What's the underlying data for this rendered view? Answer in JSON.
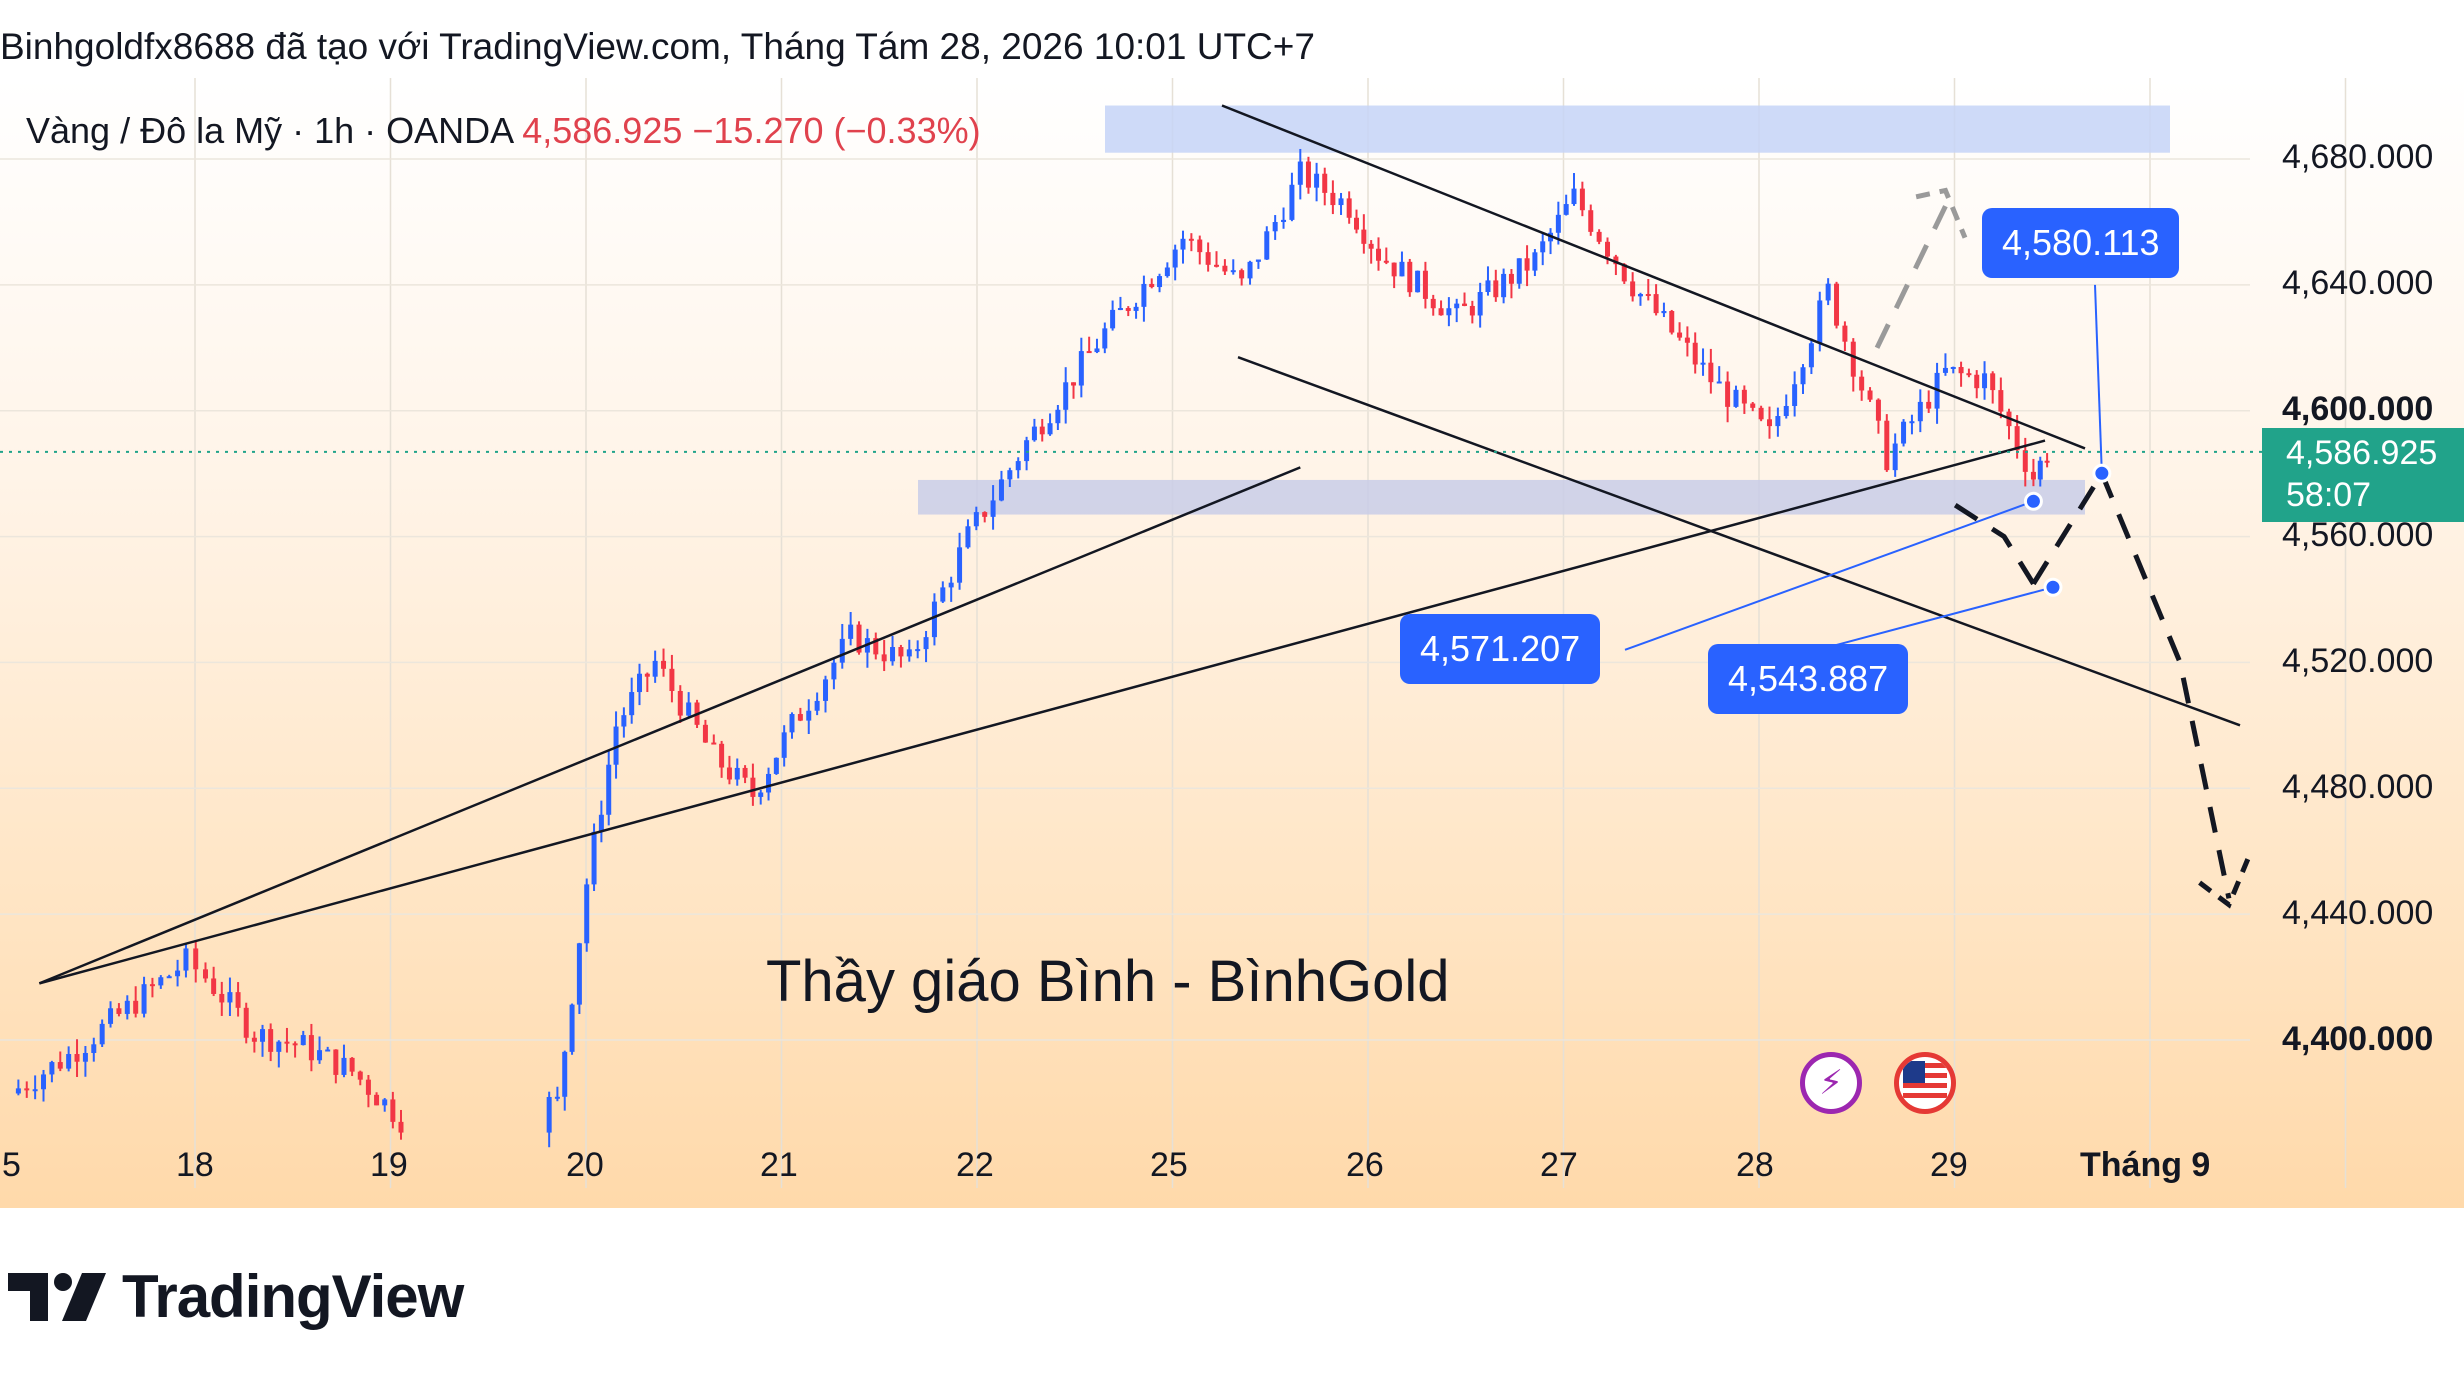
{
  "header": {
    "title": "Binhgoldfx8688 đã tạo với TradingView.com, Tháng Tám 28, 2026 10:01 UTC+7"
  },
  "symbol": {
    "name": "Vàng / Đô la Mỹ · 1h · OANDA",
    "price": "4,586.925",
    "change": "−15.270 (−0.33%)"
  },
  "watermark": "Thầy giáo Bình - BìnhGold",
  "price_axis": [
    "4,680.000",
    "4,640.000",
    "4,600.000",
    "4,560.000",
    "4,520.000",
    "4,480.000",
    "4,440.000",
    "4,400.000"
  ],
  "last_price": {
    "value": "4,586.925",
    "countdown": "58:07",
    "color": "#21a38a"
  },
  "time_axis": [
    "5",
    "18",
    "19",
    "20",
    "21",
    "22",
    "25",
    "26",
    "27",
    "28",
    "29",
    "Tháng 9"
  ],
  "callouts": [
    {
      "label": "4,580.113"
    },
    {
      "label": "4,571.207"
    },
    {
      "label": "4,543.887"
    }
  ],
  "icons": [
    "lightning-icon",
    "us-flag-icon"
  ],
  "footer": {
    "brand": "TradingView"
  },
  "colors": {
    "up": "#2962ff",
    "down": "#f23645",
    "zone": "#c5d3f7",
    "callout": "#2962ff",
    "price_line": "#21a38a"
  },
  "chart_data": {
    "type": "candlestick",
    "symbol": "XAU/USD",
    "timeframe": "1h",
    "ylim": [
      4380,
      4700
    ],
    "current_price": 4586.925,
    "zones": [
      {
        "kind": "resistance",
        "from": 4682,
        "to": 4697
      },
      {
        "kind": "support",
        "from": 4567,
        "to": 4578
      }
    ],
    "levels": [
      4580.113,
      4571.207,
      4543.887
    ],
    "close_path": [
      {
        "x": 0.0,
        "y": 4383
      },
      {
        "x": 0.3,
        "y": 4395
      },
      {
        "x": 0.6,
        "y": 4410
      },
      {
        "x": 0.9,
        "y": 4425
      },
      {
        "x": 1.0,
        "y": 4420
      },
      {
        "x": 1.25,
        "y": 4402
      },
      {
        "x": 1.5,
        "y": 4398
      },
      {
        "x": 1.75,
        "y": 4390
      },
      {
        "x": 2.0,
        "y": 4375
      },
      {
        "x": 2.8,
        "y": 4380
      },
      {
        "x": 2.95,
        "y": 4450
      },
      {
        "x": 3.1,
        "y": 4500
      },
      {
        "x": 3.3,
        "y": 4520
      },
      {
        "x": 3.6,
        "y": 4490
      },
      {
        "x": 3.8,
        "y": 4478
      },
      {
        "x": 4.0,
        "y": 4500
      },
      {
        "x": 4.3,
        "y": 4528
      },
      {
        "x": 4.6,
        "y": 4520
      },
      {
        "x": 4.9,
        "y": 4560
      },
      {
        "x": 5.2,
        "y": 4590
      },
      {
        "x": 5.6,
        "y": 4625
      },
      {
        "x": 6.0,
        "y": 4655
      },
      {
        "x": 6.3,
        "y": 4640
      },
      {
        "x": 6.6,
        "y": 4675
      },
      {
        "x": 6.85,
        "y": 4665
      },
      {
        "x": 7.0,
        "y": 4650
      },
      {
        "x": 7.4,
        "y": 4630
      },
      {
        "x": 7.8,
        "y": 4648
      },
      {
        "x": 8.0,
        "y": 4668
      },
      {
        "x": 8.3,
        "y": 4640
      },
      {
        "x": 8.7,
        "y": 4610
      },
      {
        "x": 9.0,
        "y": 4592
      },
      {
        "x": 9.3,
        "y": 4638
      },
      {
        "x": 9.6,
        "y": 4585
      },
      {
        "x": 9.9,
        "y": 4612
      },
      {
        "x": 10.1,
        "y": 4610
      },
      {
        "x": 10.35,
        "y": 4579
      },
      {
        "x": 10.42,
        "y": 4587
      }
    ]
  }
}
